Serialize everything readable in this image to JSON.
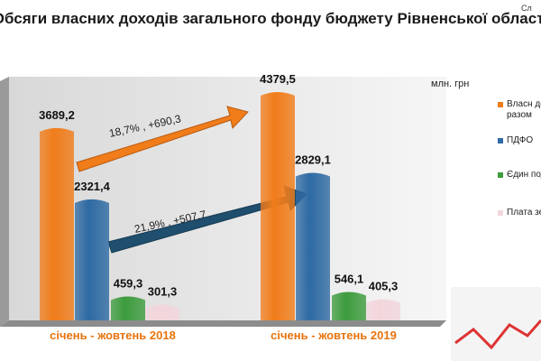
{
  "chart_data": {
    "type": "bar",
    "title": "Обсяги власних доходів загального фонду бюджету Рівненської області",
    "corner_text": "Сл",
    "unit": "млн. грн",
    "categories": [
      "січень - жовтень 2018",
      "січень - жовтень 2019"
    ],
    "series": [
      {
        "name": "Власн дохо разом",
        "color": "#f07c1a",
        "values": [
          3689.2,
          4379.5
        ],
        "value_labels": [
          "3689,2",
          "4379,5"
        ]
      },
      {
        "name": "ПДФО",
        "color": "#2e6aa3",
        "values": [
          2321.4,
          2829.1
        ],
        "value_labels": [
          "2321,4",
          "2829,1"
        ]
      },
      {
        "name": "Єдин подат",
        "color": "#3d9b3d",
        "values": [
          459.3,
          546.1
        ],
        "value_labels": [
          "459,3",
          "546,1"
        ]
      },
      {
        "name": "Плата земл",
        "color": "#f2d6dc",
        "values": [
          301.3,
          405.3
        ],
        "value_labels": [
          "301,3",
          "405,3"
        ]
      }
    ],
    "annotations": [
      "18,7% ,   +690,3",
      "21,9% ,   +507,7"
    ],
    "ylim": [
      0,
      4500
    ]
  }
}
